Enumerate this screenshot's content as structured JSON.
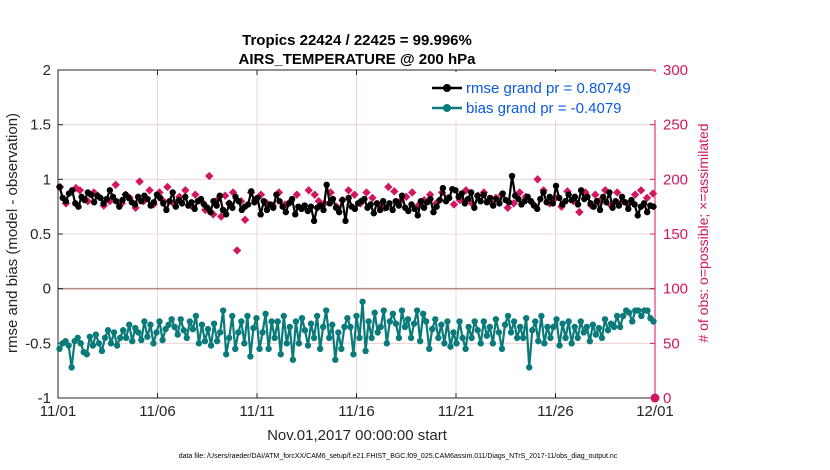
{
  "chart_data": {
    "type": "line",
    "title": "Tropics 22424 / 22425 = 99.996%",
    "subtitle": "AIRS_TEMPERATURE @ 200 hPa",
    "xlabel": "Nov.01,2017 00:00:00 start",
    "ylabel": "rmse and bias (model - observation)",
    "ylabel_right": "# of obs: o=possible; ×=assimilated",
    "footnote": "data file: /Users/raeder/DAI/ATM_forcXX/CAM6_setup/f.e21.FHIST_BGC.f09_025.CAM6assim.011/Diags_NTrS_2017-11/obs_diag_output.nc",
    "xlim": [
      0,
      30
    ],
    "ylim": [
      -1,
      2
    ],
    "ylim_right": [
      0,
      300
    ],
    "x_ticks": [
      0,
      5,
      10,
      15,
      20,
      25,
      30
    ],
    "x_tick_labels": [
      "11/01",
      "11/06",
      "11/11",
      "11/16",
      "11/21",
      "11/26",
      "12/01"
    ],
    "y_ticks": [
      -1,
      -0.5,
      0,
      0.5,
      1,
      1.5,
      2
    ],
    "y_tick_labels": [
      "-1",
      "-0.5",
      "0",
      "0.5",
      "1",
      "1.5",
      "2"
    ],
    "y_right_ticks": [
      0,
      50,
      100,
      150,
      200,
      250,
      300
    ],
    "y_right_tick_labels": [
      "0",
      "50",
      "100",
      "150",
      "200",
      "250",
      "300"
    ],
    "zero_line": 0,
    "colors": {
      "rmse": "#000000",
      "bias": "#0b7a7a",
      "obs": "#d0175f",
      "legend_text": "#0a5ae0",
      "zero_line": "#b58a8a",
      "grid": "#e8cccc"
    },
    "series": [
      {
        "name": "rmse grand pr = 0.80749",
        "axis": "left",
        "marker": "circle",
        "values": [
          0.93,
          0.83,
          0.8,
          0.87,
          0.9,
          0.78,
          0.75,
          0.84,
          0.81,
          0.88,
          0.86,
          0.79,
          0.85,
          0.83,
          0.78,
          0.82,
          0.9,
          0.84,
          0.8,
          0.75,
          0.81,
          0.86,
          0.83,
          0.79,
          0.77,
          0.84,
          0.8,
          0.85,
          0.82,
          0.76,
          0.79,
          0.86,
          0.83,
          0.78,
          0.72,
          0.8,
          0.88,
          0.75,
          0.81,
          0.78,
          0.84,
          0.76,
          0.79,
          0.73,
          0.8,
          0.82,
          0.77,
          0.74,
          0.7,
          0.8,
          0.76,
          0.85,
          0.72,
          0.68,
          0.78,
          0.74,
          0.84,
          0.8,
          0.72,
          0.75,
          0.77,
          0.89,
          0.79,
          0.83,
          0.68,
          0.8,
          0.72,
          0.77,
          0.74,
          0.86,
          0.8,
          0.75,
          0.7,
          0.78,
          0.82,
          0.68,
          0.75,
          0.73,
          0.76,
          0.71,
          0.75,
          0.62,
          0.74,
          0.76,
          0.72,
          0.95,
          0.78,
          0.82,
          0.74,
          0.7,
          0.81,
          0.62,
          0.83,
          0.75,
          0.73,
          0.78,
          0.8,
          0.82,
          0.74,
          0.77,
          0.69,
          0.78,
          0.72,
          0.8,
          0.74,
          0.78,
          0.72,
          0.8,
          0.76,
          0.85,
          0.74,
          0.71,
          0.77,
          0.73,
          0.67,
          0.8,
          0.74,
          0.79,
          0.82,
          0.7,
          0.75,
          0.81,
          0.92,
          0.8,
          0.83,
          0.91,
          0.9,
          0.84,
          0.87,
          0.78,
          0.82,
          0.88,
          0.74,
          0.85,
          0.8,
          0.86,
          0.79,
          0.83,
          0.76,
          0.82,
          0.78,
          0.87,
          0.81,
          0.79,
          1.03,
          0.85,
          0.82,
          0.77,
          0.8,
          0.84,
          0.8,
          0.76,
          0.73,
          0.82,
          0.88,
          0.79,
          0.84,
          0.78,
          0.94,
          0.83,
          0.77,
          0.8,
          0.86,
          0.81,
          0.84,
          0.77,
          0.9,
          0.82,
          0.84,
          0.78,
          0.75,
          0.8,
          0.72,
          0.84,
          0.79,
          0.88,
          0.74,
          0.8,
          0.76,
          0.84,
          0.79,
          0.73,
          0.81,
          0.77,
          0.67,
          0.75,
          0.78,
          0.7,
          0.76,
          0.75
        ]
      },
      {
        "name": "bias grand pr = -0.4079",
        "axis": "left",
        "marker": "circle",
        "values": [
          -0.55,
          -0.5,
          -0.48,
          -0.52,
          -0.72,
          -0.48,
          -0.45,
          -0.5,
          -0.58,
          -0.6,
          -0.44,
          -0.52,
          -0.42,
          -0.5,
          -0.57,
          -0.45,
          -0.38,
          -0.5,
          -0.4,
          -0.52,
          -0.45,
          -0.38,
          -0.45,
          -0.33,
          -0.48,
          -0.36,
          -0.4,
          -0.47,
          -0.3,
          -0.44,
          -0.33,
          -0.5,
          -0.4,
          -0.3,
          -0.47,
          -0.37,
          -0.33,
          -0.28,
          -0.35,
          -0.42,
          -0.28,
          -0.38,
          -0.45,
          -0.3,
          -0.37,
          -0.25,
          -0.5,
          -0.33,
          -0.48,
          -0.37,
          -0.52,
          -0.32,
          -0.48,
          -0.4,
          -0.2,
          -0.6,
          -0.45,
          -0.25,
          -0.55,
          -0.4,
          -0.3,
          -0.5,
          -0.25,
          -0.62,
          -0.36,
          -0.27,
          -0.55,
          -0.4,
          -0.23,
          -0.55,
          -0.3,
          -0.45,
          -0.3,
          -0.6,
          -0.25,
          -0.5,
          -0.35,
          -0.65,
          -0.3,
          -0.5,
          -0.27,
          -0.38,
          -0.52,
          -0.32,
          -0.45,
          -0.25,
          -0.55,
          -0.35,
          -0.2,
          -0.45,
          -0.33,
          -0.65,
          -0.4,
          -0.55,
          -0.35,
          -0.27,
          -0.35,
          -0.6,
          -0.25,
          -0.45,
          -0.12,
          -0.57,
          -0.3,
          -0.45,
          -0.22,
          -0.4,
          -0.35,
          -0.2,
          -0.5,
          -0.3,
          -0.23,
          -0.32,
          -0.45,
          -0.2,
          -0.35,
          -0.28,
          -0.45,
          -0.32,
          -0.2,
          -0.48,
          -0.23,
          -0.3,
          -0.55,
          -0.37,
          -0.28,
          -0.45,
          -0.33,
          -0.5,
          -0.3,
          -0.53,
          -0.4,
          -0.5,
          -0.3,
          -0.45,
          -0.55,
          -0.35,
          -0.45,
          -0.3,
          -0.38,
          -0.5,
          -0.3,
          -0.43,
          -0.35,
          -0.5,
          -0.28,
          -0.4,
          -0.55,
          -0.33,
          -0.25,
          -0.4,
          -0.3,
          -0.45,
          -0.35,
          -0.45,
          -0.27,
          -0.72,
          -0.38,
          -0.3,
          -0.48,
          -0.25,
          -0.5,
          -0.35,
          -0.45,
          -0.35,
          -0.28,
          -0.52,
          -0.32,
          -0.45,
          -0.3,
          -0.5,
          -0.35,
          -0.45,
          -0.3,
          -0.4,
          -0.35,
          -0.48,
          -0.33,
          -0.42,
          -0.36,
          -0.45,
          -0.28,
          -0.38,
          -0.32,
          -0.35,
          -0.25,
          -0.35,
          -0.25,
          -0.2,
          -0.22,
          -0.3,
          -0.2,
          -0.2,
          -0.25,
          -0.2,
          -0.2,
          -0.27,
          -0.3
        ]
      },
      {
        "name": "observations assimilated",
        "axis": "right",
        "marker": "x",
        "show_in_legend": false,
        "x": [
          0.1,
          0.4,
          0.9,
          1.1,
          1.5,
          1.8,
          2.0,
          2.3,
          2.6,
          2.9,
          3.2,
          3.4,
          3.6,
          3.9,
          4.1,
          4.3,
          4.6,
          4.8,
          5.1,
          5.3,
          5.5,
          5.8,
          6.1,
          6.4,
          6.7,
          6.9,
          7.2,
          7.4,
          7.6,
          7.8,
          8.0,
          8.2,
          8.4,
          8.6,
          8.8,
          9.0,
          9.2,
          9.4,
          9.7,
          9.9,
          10.2,
          10.5,
          10.8,
          11.1,
          11.4,
          11.7,
          12.0,
          12.3,
          12.6,
          12.9,
          13.1,
          13.4,
          13.7,
          14.0,
          14.3,
          14.6,
          14.9,
          15.2,
          15.5,
          15.8,
          16.1,
          16.4,
          16.6,
          16.9,
          17.2,
          17.5,
          17.8,
          18.1,
          18.4,
          18.7,
          19.0,
          19.3,
          19.6,
          19.9,
          20.2,
          20.5,
          20.8,
          21.1,
          21.4,
          21.7,
          22.0,
          22.3,
          22.6,
          22.9,
          23.2,
          23.5,
          23.8,
          24.1,
          24.4,
          24.7,
          25.0,
          25.3,
          25.6,
          25.9,
          26.2,
          26.5,
          26.8,
          27.0,
          27.2,
          27.5,
          27.8,
          28.1,
          28.4,
          28.7,
          29.0,
          29.3,
          29.6,
          29.9
        ],
        "values": [
          193,
          178,
          192,
          190,
          180,
          188,
          185,
          176,
          180,
          195,
          178,
          186,
          183,
          174,
          198,
          180,
          190,
          177,
          188,
          180,
          193,
          178,
          184,
          190,
          176,
          186,
          180,
          172,
          203,
          168,
          181,
          166,
          185,
          178,
          188,
          135,
          180,
          163,
          188,
          181,
          186,
          178,
          176,
          188,
          177,
          180,
          186,
          174,
          190,
          186,
          180,
          178,
          188,
          175,
          181,
          190,
          186,
          178,
          188,
          183,
          177,
          174,
          193,
          189,
          180,
          184,
          188,
          176,
          181,
          186,
          178,
          188,
          183,
          177,
          181,
          190,
          178,
          185,
          188,
          180,
          183,
          186,
          174,
          178,
          188,
          184,
          179,
          200,
          190,
          178,
          183,
          175,
          189,
          180,
          170,
          188,
          176,
          186,
          180,
          190,
          176,
          188,
          180,
          178,
          186,
          190,
          183,
          187
        ]
      }
    ]
  }
}
